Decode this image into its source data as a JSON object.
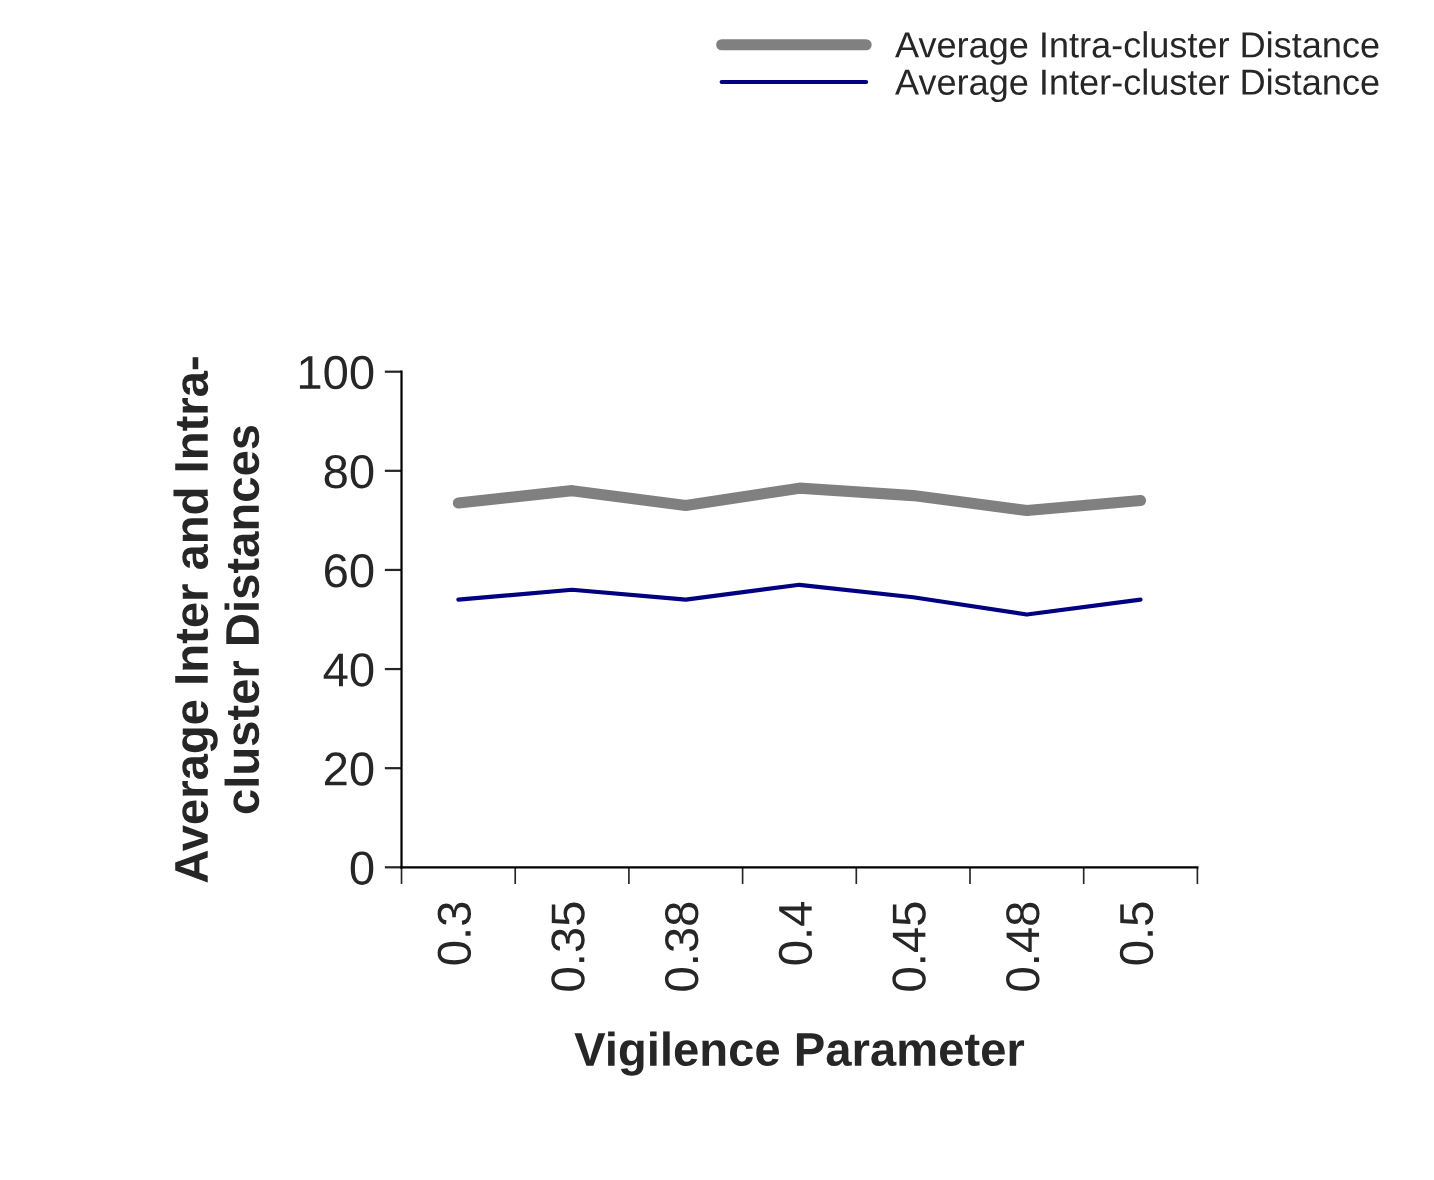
{
  "chart_data": {
    "type": "line",
    "xlabel": "Vigilence Parameter",
    "ylabel": "Average Inter and Intra-\ncluster Distances",
    "categories": [
      "0.3",
      "0.35",
      "0.38",
      "0.4",
      "0.45",
      "0.48",
      "0.5"
    ],
    "series": [
      {
        "name": "Average Intra-cluster Distance",
        "color": "#808080",
        "values": [
          73.5,
          76,
          73,
          76.5,
          75,
          72,
          74
        ]
      },
      {
        "name": "Average Inter-cluster Distance",
        "color": "#000080",
        "values": [
          54,
          56,
          54,
          57,
          54.5,
          51,
          54
        ]
      }
    ],
    "ylim": [
      0,
      100
    ],
    "yticks": [
      0,
      20,
      40,
      60,
      80,
      100
    ],
    "grid": false,
    "legend": "top right",
    "marker": "none",
    "line_style": "solid"
  }
}
